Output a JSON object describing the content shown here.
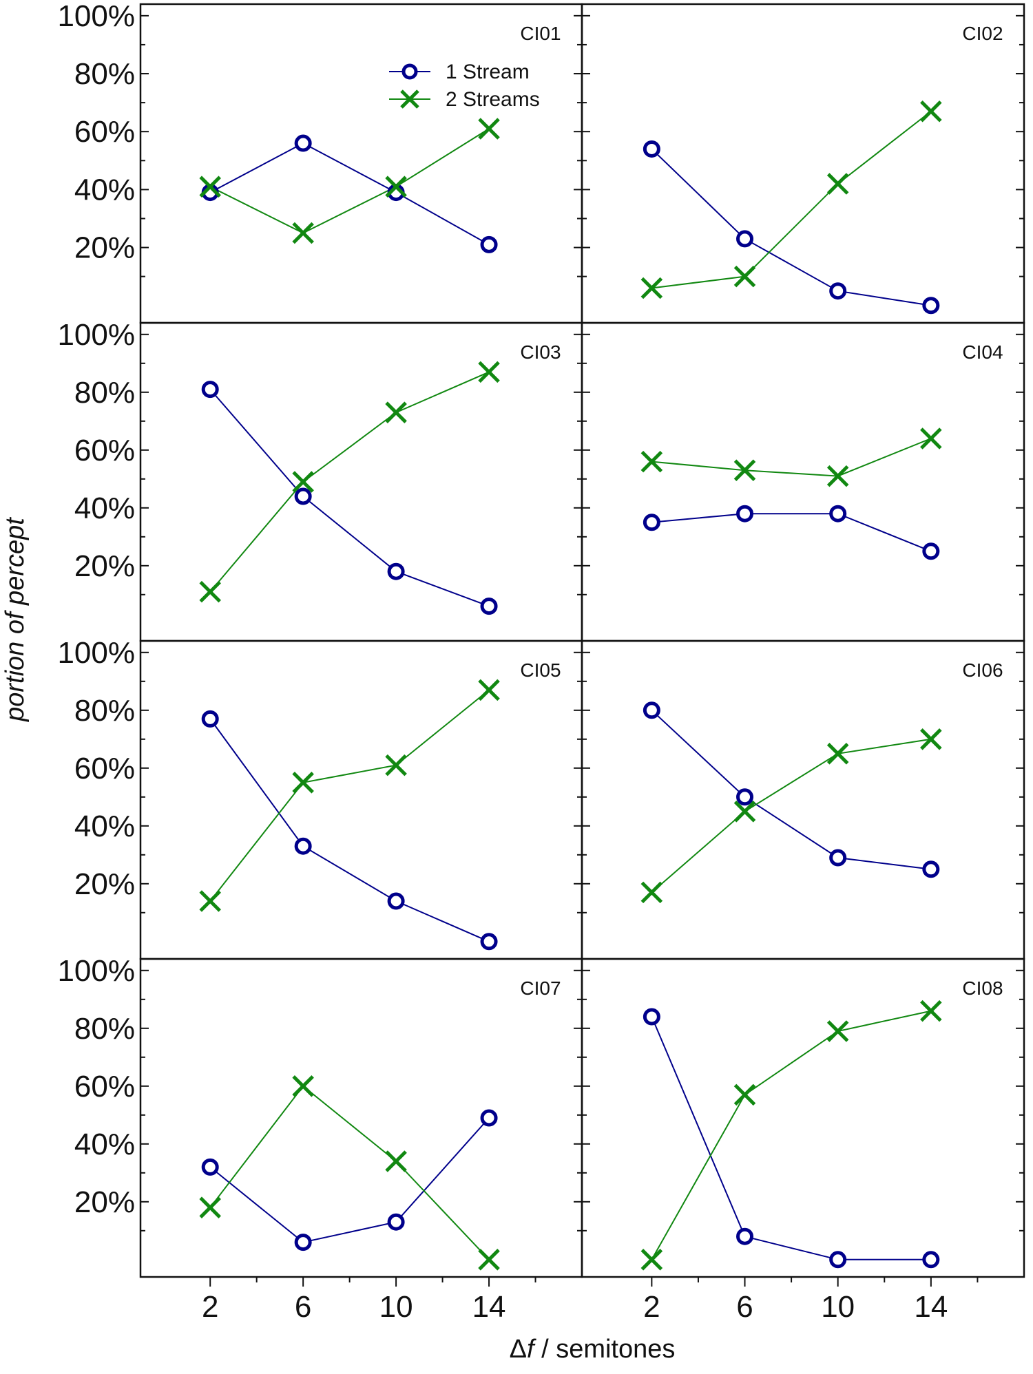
{
  "colors": {
    "one_stream": "#00008b",
    "two_streams": "#118811",
    "axis": "#111111"
  },
  "chart_data": {
    "type": "line",
    "layout": "4x2 grid of panels, shared axes",
    "xlabel_symbol": "Δ",
    "xlabel_var": "f",
    "xlabel_rest": " / semitones",
    "ylabel": "portion of percept",
    "x": [
      2,
      6,
      10,
      14
    ],
    "x_tick_labels": [
      "2",
      "6",
      "10",
      "14"
    ],
    "xlim": [
      -1,
      18
    ],
    "ylim": [
      -6,
      104
    ],
    "y_ticks": [
      20,
      40,
      60,
      80,
      100
    ],
    "y_tick_labels": [
      "20%",
      "40%",
      "60%",
      "80%",
      "100%"
    ],
    "legend": {
      "panel": "CI01",
      "placement": "top-right",
      "entries": [
        {
          "name": "1 Stream",
          "marker": "circle"
        },
        {
          "name": "2 Streams",
          "marker": "x"
        }
      ]
    },
    "panels": [
      {
        "label": "CI01",
        "one_stream": [
          39,
          56,
          39,
          21
        ],
        "two_streams": [
          41,
          25,
          41,
          61
        ]
      },
      {
        "label": "CI02",
        "one_stream": [
          54,
          23,
          5,
          0
        ],
        "two_streams": [
          6,
          10,
          42,
          67
        ]
      },
      {
        "label": "CI03",
        "one_stream": [
          81,
          44,
          18,
          6
        ],
        "two_streams": [
          11,
          49,
          73,
          87
        ]
      },
      {
        "label": "CI04",
        "one_stream": [
          35,
          38,
          38,
          25
        ],
        "two_streams": [
          56,
          53,
          51,
          64
        ]
      },
      {
        "label": "CI05",
        "one_stream": [
          77,
          33,
          14,
          0
        ],
        "two_streams": [
          14,
          55,
          61,
          87
        ]
      },
      {
        "label": "CI06",
        "one_stream": [
          80,
          50,
          29,
          25
        ],
        "two_streams": [
          17,
          45,
          65,
          70
        ]
      },
      {
        "label": "CI07",
        "one_stream": [
          32,
          6,
          13,
          49
        ],
        "two_streams": [
          18,
          60,
          34,
          0
        ]
      },
      {
        "label": "CI08",
        "one_stream": [
          84,
          8,
          0,
          0
        ],
        "two_streams": [
          0,
          57,
          79,
          86
        ]
      }
    ]
  }
}
